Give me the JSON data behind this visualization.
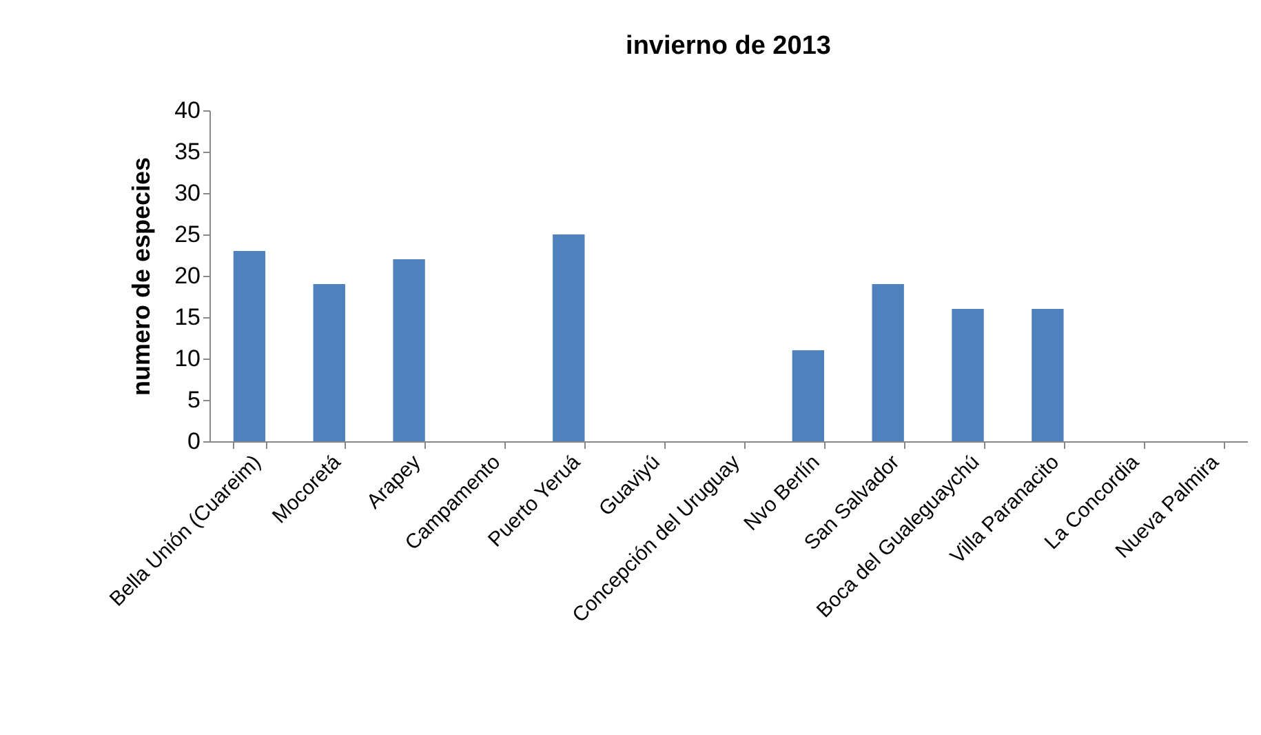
{
  "chart_data": {
    "type": "bar",
    "title": "invierno de 2013",
    "ylabel": "numero de especies",
    "categories": [
      "Bella Unión (Cuareim)",
      "Mocoretá",
      "Arapey",
      "Campamento",
      "Puerto Yeruá",
      "Guaviyú",
      "Concepción del Uruguay",
      "Nvo Berlín",
      "San Salvador",
      "Boca del Gualeguaychú",
      "Villa Paranacito",
      "La Concordia",
      "Nueva Palmira"
    ],
    "values": [
      23,
      19,
      22,
      0,
      25,
      0,
      0,
      11,
      19,
      16,
      16,
      0,
      0
    ],
    "color": "#4f81bd",
    "ylim": [
      0,
      40
    ],
    "yticks": [
      0,
      5,
      10,
      15,
      20,
      25,
      30,
      35,
      40
    ]
  }
}
